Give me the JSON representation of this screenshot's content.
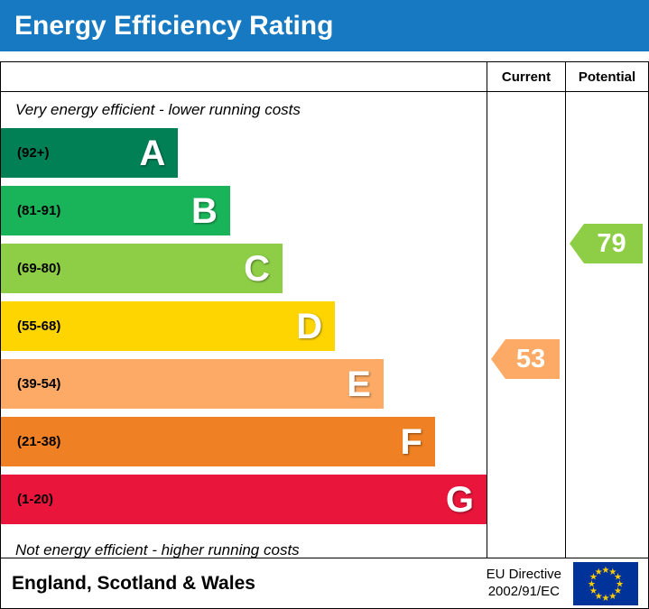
{
  "title": "Energy Efficiency Rating",
  "columns": {
    "current": "Current",
    "potential": "Potential"
  },
  "notes": {
    "top": "Very energy efficient - lower running costs",
    "bottom": "Not energy efficient - higher running costs"
  },
  "chart_data": {
    "type": "bar",
    "title": "Energy Efficiency Rating",
    "bands": [
      {
        "letter": "A",
        "range": "(92+)",
        "color": "#008054",
        "width_pct": 36.5
      },
      {
        "letter": "B",
        "range": "(81-91)",
        "color": "#19b459",
        "width_pct": 47.2
      },
      {
        "letter": "C",
        "range": "(69-80)",
        "color": "#8dce46",
        "width_pct": 58.0
      },
      {
        "letter": "D",
        "range": "(55-68)",
        "color": "#ffd500",
        "width_pct": 68.8
      },
      {
        "letter": "E",
        "range": "(39-54)",
        "color": "#fcaa65",
        "width_pct": 78.8
      },
      {
        "letter": "F",
        "range": "(21-38)",
        "color": "#ef8023",
        "width_pct": 89.4
      },
      {
        "letter": "G",
        "range": "(1-20)",
        "color": "#e9153b",
        "width_pct": 100
      }
    ],
    "current": {
      "label": "Current",
      "value": 53,
      "band": "E",
      "color": "#fcaa65"
    },
    "potential": {
      "label": "Potential",
      "value": 79,
      "band": "C",
      "color": "#8dce46"
    }
  },
  "footer": {
    "region": "England, Scotland & Wales",
    "directive_line1": "EU Directive",
    "directive_line2": "2002/91/EC"
  },
  "icons": {
    "eu_flag": "eu-flag-icon"
  }
}
